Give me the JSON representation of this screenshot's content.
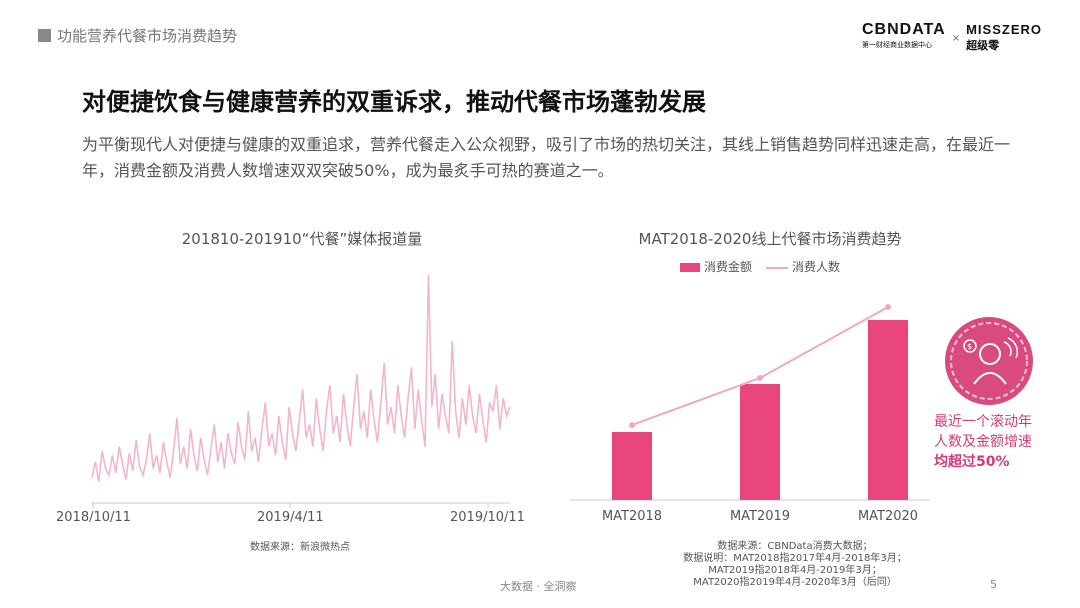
{
  "header": {
    "section": "功能营养代餐市场消费趋势",
    "logo_main": "CBNDATA",
    "logo_sub": "第一财经商业数据中心",
    "logo_x": "×",
    "partner_main": "MISSZERO",
    "partner_sub": "超级零"
  },
  "title": "对便捷饮食与健康营养的双重诉求，推动代餐市场蓬勃发展",
  "description": "为平衡现代人对便捷与健康的双重追求，营养代餐走入公众视野，吸引了市场的热切关注，其线上销售趋势同样迅速走高，在最近一年，消费金额及消费人数增速双双突破50%，成为最炙手可热的赛道之一。",
  "colors": {
    "bar": "#e8467c",
    "line": "#f0a8c0",
    "area_line": "#f3b6c8",
    "accent": "#d63a78"
  },
  "chart_data": [
    {
      "type": "line",
      "title": "201810-201910“代餐”媒体报道量",
      "x_ticks": [
        "2018/10/11",
        "2019/4/11",
        "2019/10/11"
      ],
      "source": "数据来源：新浪微热点",
      "values": [
        8,
        15,
        6,
        20,
        12,
        9,
        18,
        10,
        22,
        14,
        7,
        19,
        11,
        25,
        13,
        9,
        16,
        28,
        12,
        18,
        10,
        24,
        15,
        8,
        20,
        35,
        14,
        22,
        12,
        30,
        18,
        11,
        26,
        16,
        9,
        21,
        32,
        15,
        24,
        12,
        28,
        19,
        14,
        33,
        22,
        16,
        38,
        20,
        26,
        15,
        30,
        42,
        22,
        28,
        18,
        36,
        24,
        16,
        40,
        28,
        20,
        34,
        48,
        26,
        32,
        22,
        44,
        30,
        20,
        38,
        50,
        28,
        36,
        24,
        46,
        32,
        22,
        40,
        55,
        30,
        38,
        26,
        48,
        34,
        24,
        42,
        60,
        32,
        40,
        28,
        50,
        36,
        26,
        44,
        58,
        30,
        48,
        34,
        22,
        100,
        40,
        55,
        30,
        46,
        36,
        28,
        70,
        38,
        26,
        44,
        32,
        50,
        36,
        28,
        46,
        34,
        24,
        42,
        38,
        50,
        30,
        44,
        36,
        40
      ]
    },
    {
      "type": "bar+line",
      "title": "MAT2018-2020线上代餐市场消费趋势",
      "categories": [
        "MAT2018",
        "MAT2019",
        "MAT2020"
      ],
      "series": [
        {
          "name": "消费金额",
          "type": "bar",
          "values": [
            68,
            116,
            180
          ]
        },
        {
          "name": "消费人数",
          "type": "line",
          "values": [
            75,
            122,
            193
          ]
        }
      ],
      "source": [
        "数据来源：CBNData消费大数据；",
        "数据说明：MAT2018指2017年4月-2018年3月；",
        "MAT2019指2018年4月-2019年3月；",
        "MAT2020指2019年4月-2020年3月（后同）"
      ]
    }
  ],
  "callout": [
    "最近一个滚动年",
    "人数及金额增速",
    "均超过50%"
  ],
  "footer": {
    "center": "大数据 · 全洞察",
    "page": "5"
  }
}
